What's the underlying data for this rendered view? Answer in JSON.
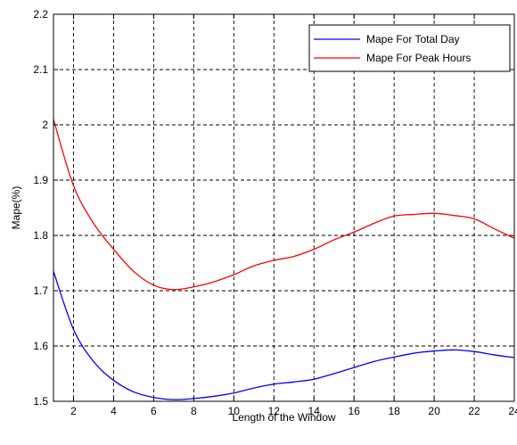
{
  "chart_data": {
    "type": "line",
    "title": "",
    "xlabel": "Length of the Window",
    "ylabel": "Mape(%)",
    "xlim": [
      1,
      24
    ],
    "ylim": [
      1.5,
      2.2
    ],
    "x_ticks": [
      2,
      4,
      6,
      8,
      10,
      12,
      14,
      16,
      18,
      20,
      22,
      24
    ],
    "y_ticks": [
      1.5,
      1.6,
      1.7,
      1.8,
      1.9,
      2,
      2.1,
      2.2
    ],
    "x_tick_labels": [
      "2",
      "4",
      "6",
      "8",
      "10",
      "12",
      "14",
      "16",
      "18",
      "20",
      "22",
      "24"
    ],
    "y_tick_labels": [
      "1.5",
      "1.6",
      "1.7",
      "1.8",
      "1.9",
      "2",
      "2.1",
      "2.2"
    ],
    "grid": true,
    "legend_position": "top-right",
    "x": [
      1,
      2,
      3,
      4,
      5,
      6,
      7,
      8,
      9,
      10,
      11,
      12,
      13,
      14,
      15,
      16,
      17,
      18,
      19,
      20,
      21,
      22,
      23,
      24
    ],
    "series": [
      {
        "name": "Mape For Total Day",
        "color": "#0000ff",
        "values": [
          1.735,
          1.63,
          1.572,
          1.538,
          1.517,
          1.507,
          1.503,
          1.505,
          1.509,
          1.515,
          1.524,
          1.531,
          1.535,
          1.54,
          1.55,
          1.561,
          1.572,
          1.58,
          1.587,
          1.591,
          1.593,
          1.59,
          1.584,
          1.579
        ]
      },
      {
        "name": "Mape For Peak Hours",
        "color": "#ff0000",
        "values": [
          2.01,
          1.89,
          1.822,
          1.775,
          1.735,
          1.71,
          1.702,
          1.707,
          1.716,
          1.729,
          1.745,
          1.755,
          1.762,
          1.775,
          1.792,
          1.806,
          1.822,
          1.835,
          1.838,
          1.84,
          1.836,
          1.83,
          1.812,
          1.795
        ]
      }
    ]
  }
}
